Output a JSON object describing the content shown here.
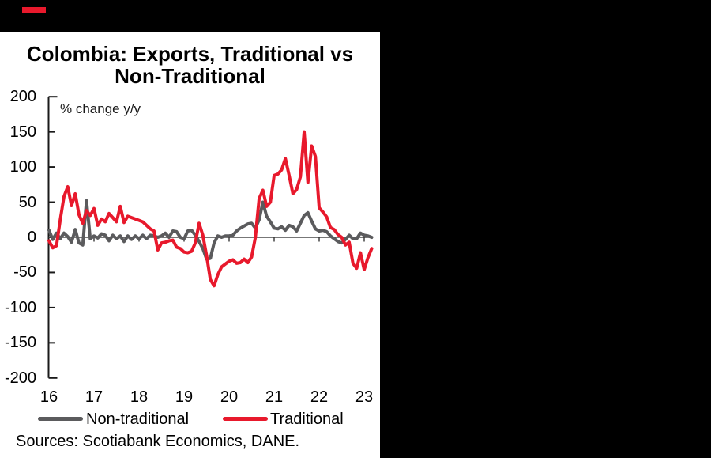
{
  "page": {
    "background_color": "#000000",
    "accent_red": "#e8192c"
  },
  "chart": {
    "title_lines": [
      "Colombia: Exports, Traditional vs",
      "Non-Traditional"
    ],
    "annotation": "% change y/y",
    "source_note": "Sources: Scotiabank Economics, DANE."
  },
  "chart_data": {
    "type": "line",
    "title": "Colombia: Exports, Traditional vs Non-Traditional",
    "ylabel": "% change y/y",
    "xlabel": "",
    "ylim": [
      -200,
      200
    ],
    "y_ticks": [
      200,
      150,
      100,
      50,
      0,
      -50,
      -100,
      -150,
      -200
    ],
    "x_tick_labels": [
      "16",
      "17",
      "18",
      "19",
      "20",
      "21",
      "22",
      "23"
    ],
    "x_start": "2016-01",
    "x_frequency": "monthly",
    "grid": false,
    "zero_line": true,
    "legend_position": "bottom",
    "series": [
      {
        "name": "Non-traditional",
        "color": "#5b5b5d",
        "values": [
          10,
          -3,
          6,
          -2,
          6,
          1,
          -7,
          11,
          -8,
          -11,
          52,
          -2,
          2,
          -1,
          5,
          3,
          -5,
          3,
          -2,
          2,
          -6,
          2,
          -3,
          2,
          -2,
          3,
          -2,
          3,
          2,
          0,
          2,
          6,
          0,
          9,
          8,
          0,
          -2,
          9,
          10,
          3,
          -6,
          -16,
          -31,
          -30,
          -8,
          2,
          0,
          2,
          2,
          3,
          9,
          13,
          16,
          19,
          20,
          13,
          25,
          50,
          30,
          22,
          13,
          12,
          15,
          10,
          17,
          15,
          9,
          20,
          31,
          35,
          23,
          12,
          9,
          10,
          8,
          2,
          -2,
          -6,
          -8,
          -3,
          3,
          -2,
          -2,
          6,
          3,
          2,
          0
        ]
      },
      {
        "name": "Traditional",
        "color": "#e8192c",
        "values": [
          -5,
          -15,
          -12,
          25,
          58,
          72,
          45,
          62,
          32,
          20,
          38,
          31,
          41,
          17,
          26,
          22,
          34,
          28,
          22,
          44,
          21,
          30,
          28,
          26,
          24,
          22,
          17,
          12,
          9,
          -18,
          -8,
          -7,
          -5,
          -4,
          -14,
          -16,
          -21,
          -22,
          -20,
          -8,
          20,
          3,
          -26,
          -60,
          -69,
          -53,
          -42,
          -38,
          -34,
          -32,
          -37,
          -36,
          -31,
          -36,
          -28,
          0,
          55,
          67,
          44,
          50,
          88,
          90,
          96,
          112,
          88,
          62,
          68,
          86,
          150,
          78,
          130,
          115,
          42,
          36,
          29,
          14,
          11,
          4,
          0,
          -11,
          -7,
          -37,
          -44,
          -22,
          -46,
          -29,
          -16
        ]
      }
    ]
  }
}
